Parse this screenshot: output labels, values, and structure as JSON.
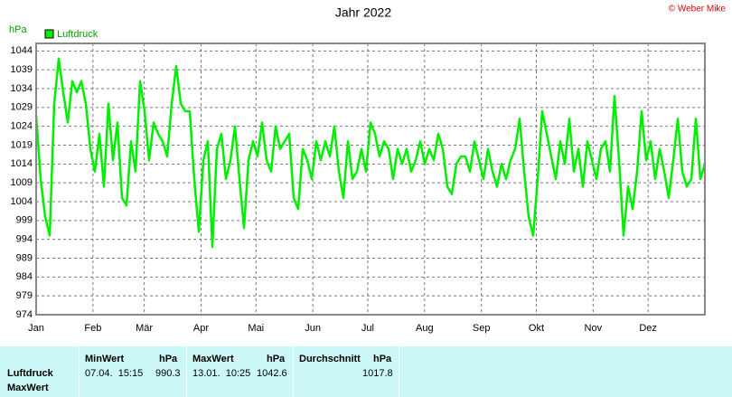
{
  "chart_data": {
    "type": "line",
    "title": "Jahr 2022",
    "y_label": "hPa",
    "copyright": "© Weber Mike",
    "xlim": [
      0,
      365
    ],
    "xticks": [
      {
        "value": 0,
        "label": "Jan"
      },
      {
        "value": 31,
        "label": "Feb"
      },
      {
        "value": 59,
        "label": "Mär"
      },
      {
        "value": 90,
        "label": "Apr"
      },
      {
        "value": 120,
        "label": "Mai"
      },
      {
        "value": 151,
        "label": "Jun"
      },
      {
        "value": 181,
        "label": "Jul"
      },
      {
        "value": 212,
        "label": "Aug"
      },
      {
        "value": 243,
        "label": "Sep"
      },
      {
        "value": 273,
        "label": "Okt"
      },
      {
        "value": 304,
        "label": "Nov"
      },
      {
        "value": 334,
        "label": "Dez"
      }
    ],
    "ylim": [
      974,
      1046
    ],
    "yticks": [
      974,
      979,
      984,
      989,
      994,
      999,
      1004,
      1009,
      1014,
      1019,
      1024,
      1029,
      1034,
      1039,
      1044
    ],
    "grid": true,
    "series": [
      {
        "name": "Luftdruck",
        "color": "#00ee00",
        "values": [
          1027,
          1010,
          1000,
          995,
          1030,
          1042,
          1033,
          1025,
          1036,
          1033,
          1036,
          1030,
          1018,
          1012,
          1022,
          1008,
          1030,
          1015,
          1025,
          1005,
          1003,
          1020,
          1012,
          1036,
          1028,
          1015,
          1025,
          1022,
          1020,
          1016,
          1030,
          1040,
          1030,
          1028,
          1028,
          1010,
          996,
          1015,
          1020,
          992,
          1018,
          1022,
          1010,
          1015,
          1024,
          1010,
          997,
          1015,
          1020,
          1016,
          1025,
          1015,
          1012,
          1024,
          1018,
          1020,
          1022,
          1005,
          1002,
          1018,
          1015,
          1010,
          1020,
          1015,
          1020,
          1016,
          1024,
          1012,
          1005,
          1020,
          1010,
          1012,
          1018,
          1012,
          1025,
          1022,
          1016,
          1020,
          1018,
          1010,
          1018,
          1014,
          1018,
          1012,
          1015,
          1020,
          1014,
          1018,
          1015,
          1022,
          1018,
          1008,
          1006,
          1014,
          1016,
          1016,
          1012,
          1020,
          1015,
          1010,
          1018,
          1012,
          1008,
          1014,
          1010,
          1015,
          1018,
          1026,
          1012,
          1000,
          995,
          1010,
          1028,
          1022,
          1016,
          1010,
          1020,
          1014,
          1026,
          1012,
          1018,
          1008,
          1020,
          1015,
          1010,
          1018,
          1020,
          1012,
          1032,
          1015,
          995,
          1008,
          1002,
          1012,
          1028,
          1015,
          1020,
          1010,
          1018,
          1012,
          1005,
          1015,
          1026,
          1012,
          1008,
          1010,
          1026,
          1010,
          1014
        ]
      }
    ]
  },
  "table": {
    "row_labels": [
      "Luftdruck",
      "MaxWert"
    ],
    "columns": [
      {
        "name": "MinWert",
        "unit": "hPa",
        "time": "07.04.  15:15",
        "value": 990.3
      },
      {
        "name": "MaxWert",
        "unit": "hPa",
        "time": "13.01.  10:25",
        "value": 1042.6
      },
      {
        "name": "Durchschnitt",
        "unit": "hPa",
        "value": 1017.8
      }
    ]
  }
}
